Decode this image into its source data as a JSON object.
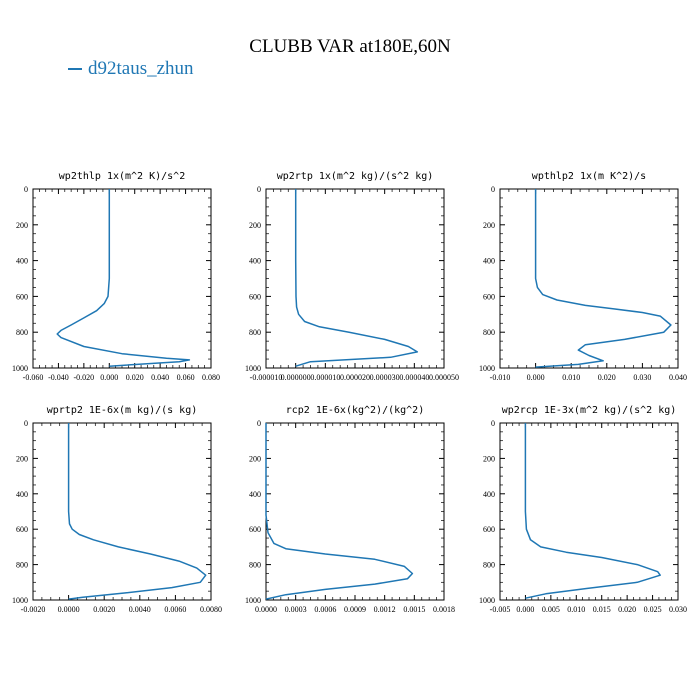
{
  "figure": {
    "title": "CLUBB VAR at180E,60N",
    "legend": [
      {
        "name": "d92taus_zhun",
        "color": "#1f77b4"
      }
    ]
  },
  "chart_data": [
    {
      "type": "line",
      "title": "wp2thlp   1x(m^2 K)/s^2",
      "xlim": [
        -0.06,
        0.08
      ],
      "ylim": [
        1000,
        0
      ],
      "x_ticks": [
        "-0.060",
        "-0.040",
        "-0.020",
        "0.000",
        "0.020",
        "0.040",
        "0.060",
        "0.080"
      ],
      "x_tick_values": [
        -0.06,
        -0.04,
        -0.02,
        0.0,
        0.02,
        0.04,
        0.06,
        0.08
      ],
      "y_ticks": [
        "0",
        "200",
        "400",
        "600",
        "800",
        "1000"
      ],
      "y_tick_values": [
        0,
        200,
        400,
        600,
        800,
        1000
      ],
      "series": [
        {
          "name": "d92taus_zhun",
          "color": "#1f77b4",
          "x": [
            0.0,
            0.0,
            0.0,
            -0.001,
            -0.004,
            -0.01,
            -0.02,
            -0.03,
            -0.038,
            -0.041,
            -0.038,
            -0.02,
            0.01,
            0.045,
            0.063,
            0.055,
            0.0
          ],
          "y": [
            0,
            300,
            500,
            600,
            640,
            680,
            720,
            760,
            790,
            810,
            830,
            880,
            920,
            945,
            955,
            965,
            990
          ]
        }
      ]
    },
    {
      "type": "line",
      "title": "wp2rtp   1x(m^2 kg)/(s^2 kg)",
      "xlim": [
        -1e-05,
        5e-05
      ],
      "ylim": [
        1000,
        0
      ],
      "x_ticks": [
        "-0.000010",
        "0.000000",
        "0.000010",
        "0.000020",
        "0.000030",
        "0.000040",
        "0.000050"
      ],
      "x_tick_values": [
        -1e-05,
        0.0,
        1e-05,
        2e-05,
        3e-05,
        4e-05,
        5e-05
      ],
      "y_ticks": [
        "0",
        "200",
        "400",
        "600",
        "800",
        "1000"
      ],
      "y_tick_values": [
        0,
        200,
        400,
        600,
        800,
        1000
      ],
      "series": [
        {
          "name": "d92taus_zhun",
          "color": "#1f77b4",
          "x": [
            0.0,
            0.0,
            1e-07,
            3e-07,
            1e-06,
            3e-06,
            8e-06,
            1.8e-05,
            3e-05,
            3.8e-05,
            4.1e-05,
            3.2e-05,
            5e-06,
            0.0
          ],
          "y": [
            0,
            400,
            600,
            660,
            700,
            740,
            770,
            800,
            840,
            880,
            910,
            940,
            965,
            990
          ]
        }
      ]
    },
    {
      "type": "line",
      "title": "wpthlp2   1x(m K^2)/s",
      "xlim": [
        -0.01,
        0.04
      ],
      "ylim": [
        1000,
        0
      ],
      "x_ticks": [
        "-0.010",
        "0.000",
        "0.010",
        "0.020",
        "0.030",
        "0.040"
      ],
      "x_tick_values": [
        -0.01,
        0.0,
        0.01,
        0.02,
        0.03,
        0.04
      ],
      "y_ticks": [
        "0",
        "200",
        "400",
        "600",
        "800",
        "1000"
      ],
      "y_tick_values": [
        0,
        200,
        400,
        600,
        800,
        1000
      ],
      "series": [
        {
          "name": "d92taus_zhun",
          "color": "#1f77b4",
          "x": [
            0.0,
            0.0,
            0.0,
            0.0005,
            0.002,
            0.006,
            0.014,
            0.022,
            0.03,
            0.035,
            0.038,
            0.036,
            0.025,
            0.014,
            0.012,
            0.015,
            0.019,
            0.012,
            0.0
          ],
          "y": [
            0,
            300,
            500,
            550,
            590,
            620,
            650,
            670,
            690,
            710,
            760,
            800,
            840,
            870,
            900,
            930,
            960,
            980,
            995
          ]
        }
      ]
    },
    {
      "type": "line",
      "title": "wprtp2   1E-6x(m kg)/(s kg)",
      "xlim": [
        -0.002,
        0.008
      ],
      "ylim": [
        1000,
        0
      ],
      "x_ticks": [
        "-0.0020",
        "0.0000",
        "0.0020",
        "0.0040",
        "0.0060",
        "0.0080"
      ],
      "x_tick_values": [
        -0.002,
        0.0,
        0.002,
        0.004,
        0.006,
        0.008
      ],
      "y_ticks": [
        "0",
        "200",
        "400",
        "600",
        "800",
        "1000"
      ],
      "y_tick_values": [
        0,
        200,
        400,
        600,
        800,
        1000
      ],
      "series": [
        {
          "name": "d92taus_zhun",
          "color": "#1f77b4",
          "x": [
            0.0,
            0.0,
            5e-05,
            0.0002,
            0.0006,
            0.0014,
            0.0028,
            0.0046,
            0.0062,
            0.0072,
            0.0077,
            0.0074,
            0.0058,
            0.0032,
            0.0008,
            0.0
          ],
          "y": [
            0,
            500,
            570,
            600,
            630,
            660,
            700,
            740,
            780,
            820,
            860,
            900,
            930,
            960,
            985,
            995
          ]
        }
      ]
    },
    {
      "type": "line",
      "title": "rcp2   1E-6x(kg^2)/(kg^2)",
      "xlim": [
        0.0,
        0.0018
      ],
      "ylim": [
        1000,
        0
      ],
      "x_ticks": [
        "0.0000",
        "0.0003",
        "0.0006",
        "0.0009",
        "0.0012",
        "0.0015",
        "0.0018"
      ],
      "x_tick_values": [
        0.0,
        0.0003,
        0.0006,
        0.0009,
        0.0012,
        0.0015,
        0.0018
      ],
      "y_ticks": [
        "0",
        "200",
        "400",
        "600",
        "800",
        "1000"
      ],
      "y_tick_values": [
        0,
        200,
        400,
        600,
        800,
        1000
      ],
      "series": [
        {
          "name": "d92taus_zhun",
          "color": "#1f77b4",
          "x": [
            0.0,
            0.0,
            2e-05,
            8e-05,
            0.0002,
            0.0006,
            0.0011,
            0.0014,
            0.00148,
            0.00143,
            0.0011,
            0.0006,
            0.0002,
            0.0
          ],
          "y": [
            0,
            520,
            620,
            680,
            710,
            740,
            770,
            810,
            850,
            880,
            910,
            940,
            970,
            995
          ]
        }
      ]
    },
    {
      "type": "line",
      "title": "wp2rcp   1E-3x(m^2 kg)/(s^2 kg)",
      "xlim": [
        -0.005,
        0.03
      ],
      "ylim": [
        1000,
        0
      ],
      "x_ticks": [
        "-0.005",
        "0.000",
        "0.005",
        "0.010",
        "0.015",
        "0.020",
        "0.025",
        "0.030"
      ],
      "x_tick_values": [
        -0.005,
        0.0,
        0.005,
        0.01,
        0.015,
        0.02,
        0.025,
        0.03
      ],
      "y_ticks": [
        "0",
        "200",
        "400",
        "600",
        "800",
        "1000"
      ],
      "y_tick_values": [
        0,
        200,
        400,
        600,
        800,
        1000
      ],
      "series": [
        {
          "name": "d92taus_zhun",
          "color": "#1f77b4",
          "x": [
            0.0,
            0.0,
            0.0002,
            0.001,
            0.003,
            0.008,
            0.015,
            0.022,
            0.026,
            0.0265,
            0.022,
            0.012,
            0.004,
            0.0
          ],
          "y": [
            0,
            500,
            600,
            660,
            700,
            730,
            760,
            800,
            840,
            860,
            900,
            935,
            965,
            990
          ]
        }
      ]
    }
  ]
}
